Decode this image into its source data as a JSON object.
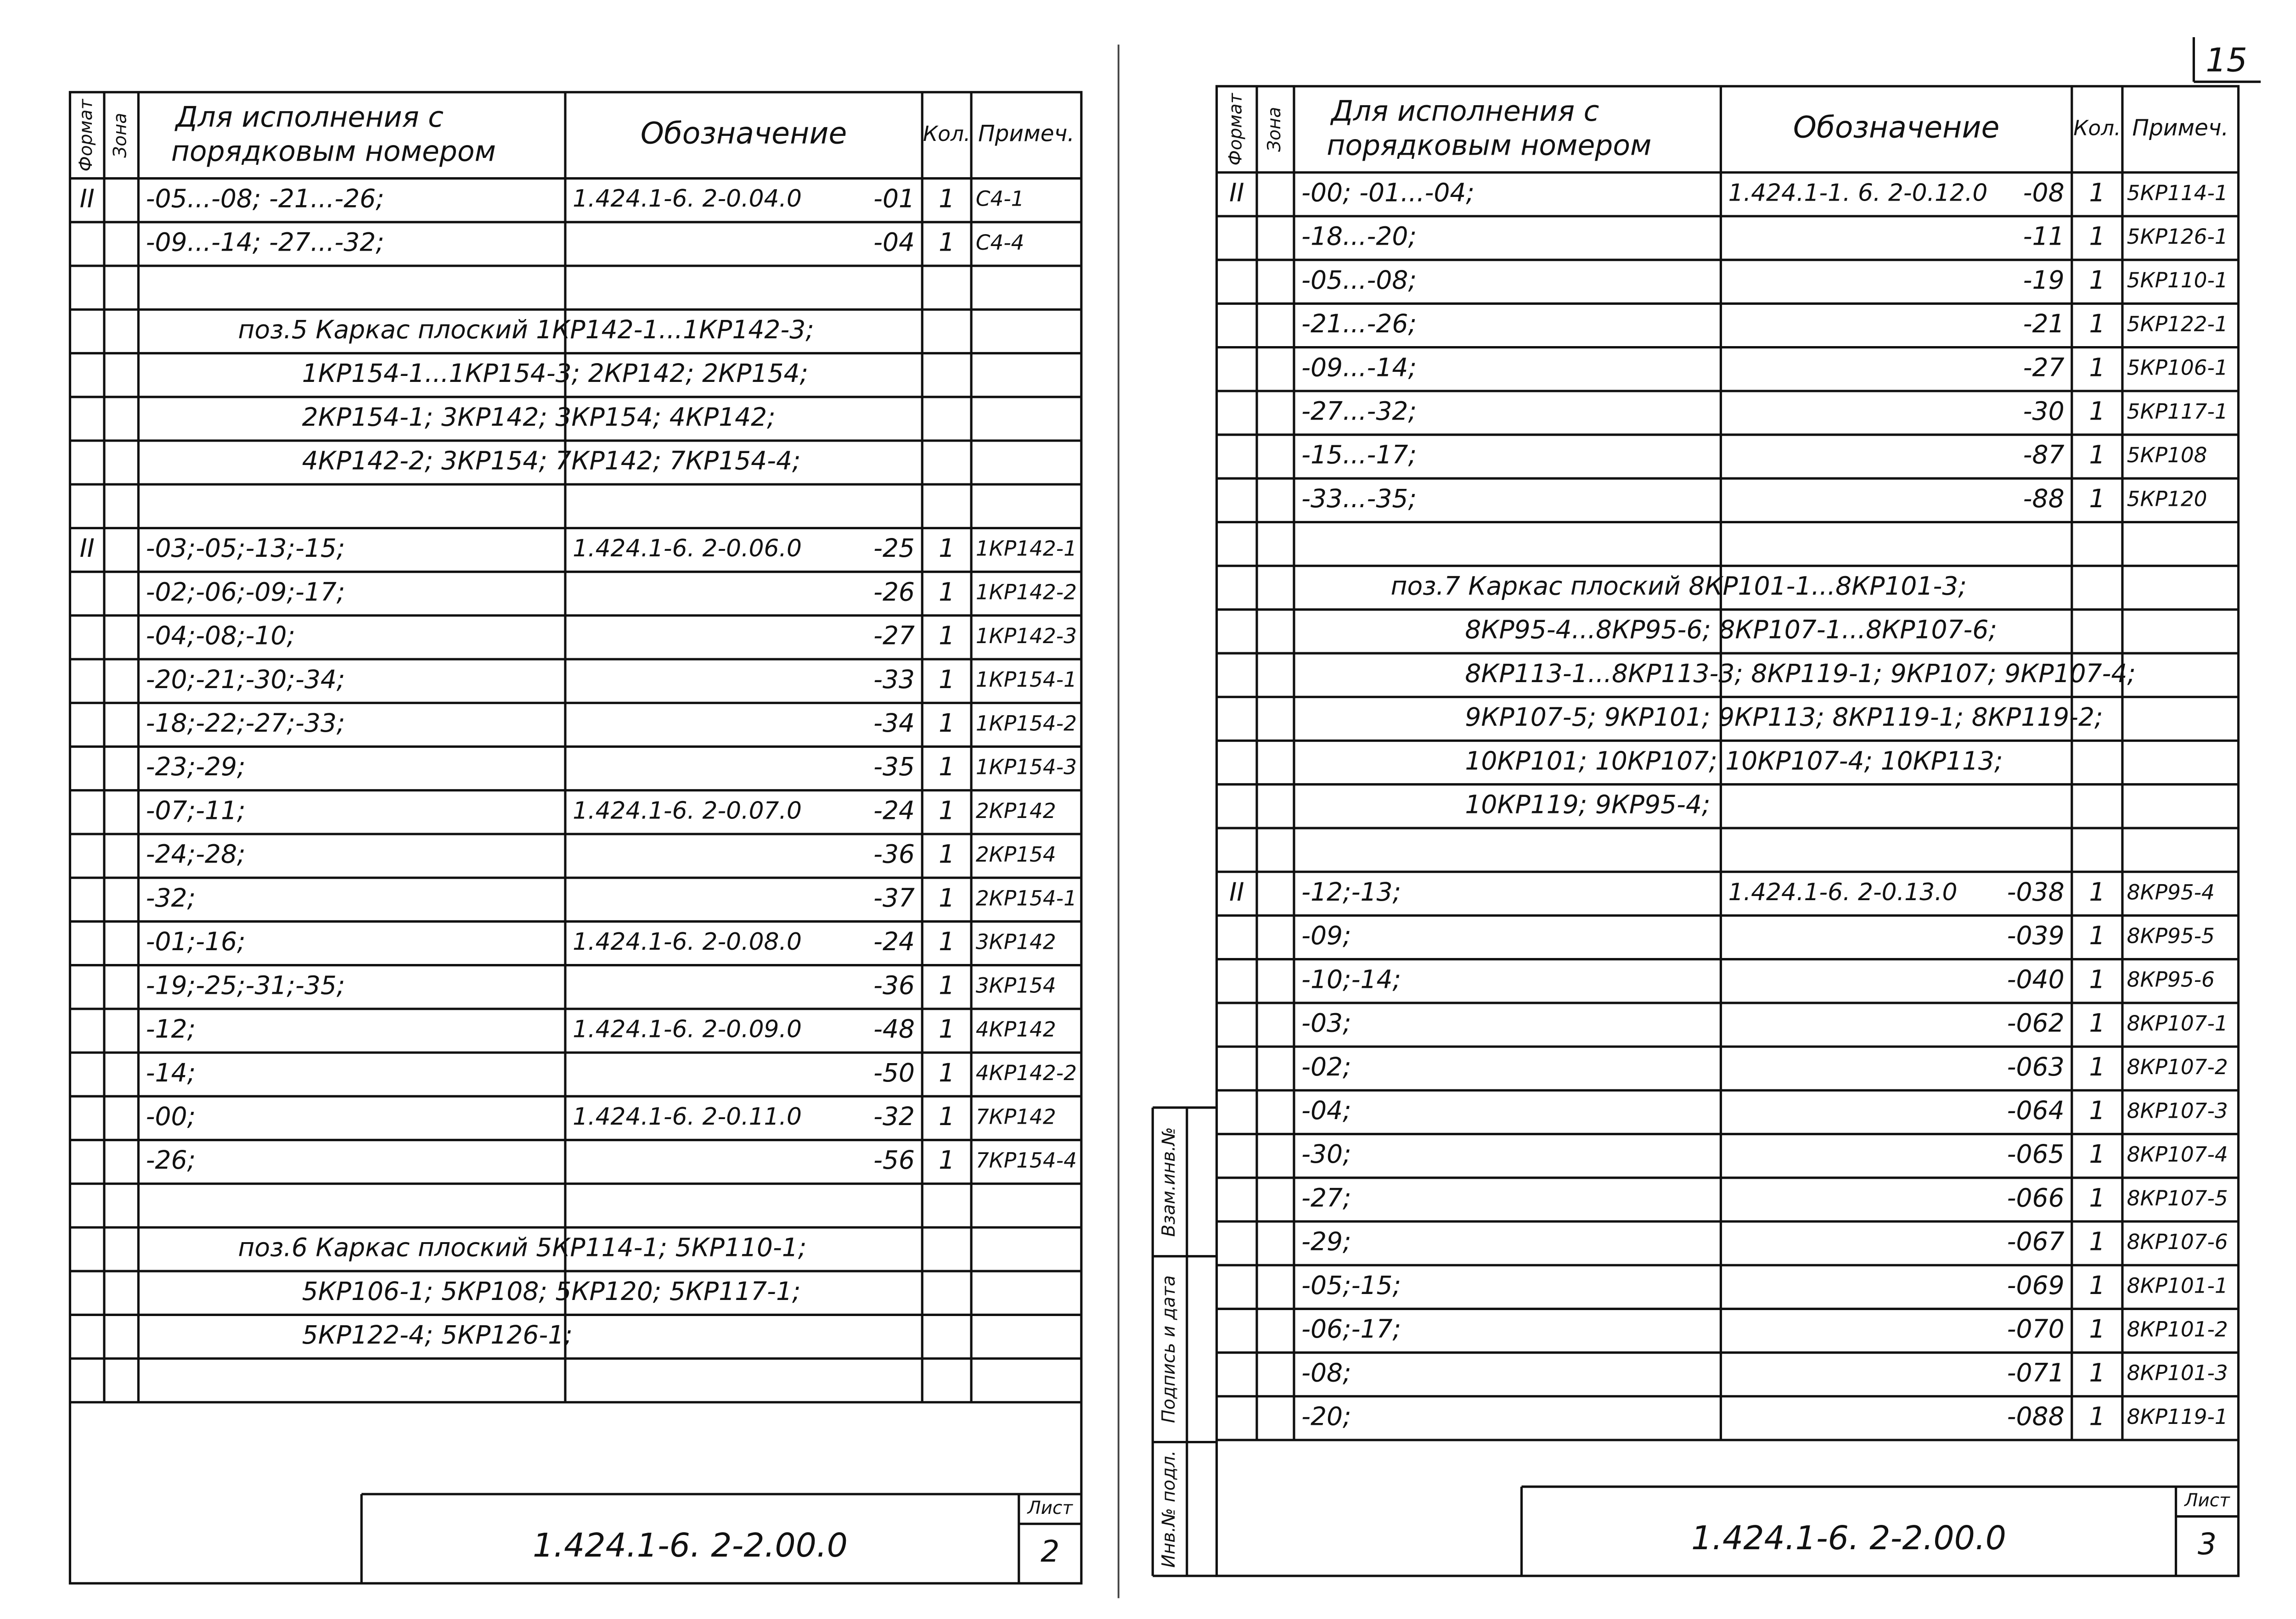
{
  "page_number": "15",
  "pages": [
    {
      "header": {
        "format": "Формат",
        "zone": "Зона",
        "exec": [
          "Для исполнения с",
          "порядковым номером"
        ],
        "designation": "Обозначение",
        "qty": "Кол.",
        "note": "Примеч."
      },
      "rows": [
        {
          "format": "II",
          "exec": "-05...-08; -21...-26;",
          "designation": "1.424.1-6. 2-0.04.0",
          "code": "-01",
          "qty": "1",
          "note": "С4-1"
        },
        {
          "exec": "-09...-14; -27...-32;",
          "code": "-04",
          "qty": "1",
          "note": "С4-4"
        },
        {},
        {
          "text": "поз.5 Каркас плоский 1КР142-1...1КР142-3;"
        },
        {
          "text": "1КР154-1...1КР154-3; 2КР142; 2КР154;"
        },
        {
          "text": "2КР154-1; 3КР142; 3КР154; 4КР142;"
        },
        {
          "text": "4КР142-2; 3КР154; 7КР142; 7КР154-4;"
        },
        {},
        {
          "format": "II",
          "exec": "-03;-05;-13;-15;",
          "designation": "1.424.1-6. 2-0.06.0",
          "code": "-25",
          "qty": "1",
          "note": "1КР142-1"
        },
        {
          "exec": "-02;-06;-09;-17;",
          "code": "-26",
          "qty": "1",
          "note": "1КР142-2"
        },
        {
          "exec": "-04;-08;-10;",
          "code": "-27",
          "qty": "1",
          "note": "1КР142-3"
        },
        {
          "exec": "-20;-21;-30;-34;",
          "code": "-33",
          "qty": "1",
          "note": "1КР154-1"
        },
        {
          "exec": "-18;-22;-27;-33;",
          "code": "-34",
          "qty": "1",
          "note": "1КР154-2"
        },
        {
          "exec": "-23;-29;",
          "code": "-35",
          "qty": "1",
          "note": "1КР154-3"
        },
        {
          "exec": "-07;-11;",
          "designation": "1.424.1-6. 2-0.07.0",
          "code": "-24",
          "qty": "1",
          "note": "2КР142"
        },
        {
          "exec": "-24;-28;",
          "code": "-36",
          "qty": "1",
          "note": "2КР154"
        },
        {
          "exec": "-32;",
          "code": "-37",
          "qty": "1",
          "note": "2КР154-1"
        },
        {
          "exec": "-01;-16;",
          "designation": "1.424.1-6. 2-0.08.0",
          "code": "-24",
          "qty": "1",
          "note": "3КР142"
        },
        {
          "exec": "-19;-25;-31;-35;",
          "code": "-36",
          "qty": "1",
          "note": "3КР154"
        },
        {
          "exec": "-12;",
          "designation": "1.424.1-6. 2-0.09.0",
          "code": "-48",
          "qty": "1",
          "note": "4КР142"
        },
        {
          "exec": "-14;",
          "code": "-50",
          "qty": "1",
          "note": "4КР142-2"
        },
        {
          "exec": "-00;",
          "designation": "1.424.1-6. 2-0.11.0",
          "code": "-32",
          "qty": "1",
          "note": "7КР142"
        },
        {
          "exec": "-26;",
          "code": "-56",
          "qty": "1",
          "note": "7КР154-4"
        },
        {},
        {
          "text": "поз.6 Каркас плоский 5КР114-1; 5КР110-1;"
        },
        {
          "text": "5КР106-1; 5КР108; 5КР120; 5КР117-1;"
        },
        {
          "text": "5КР122-4; 5КР126-1;"
        },
        {}
      ],
      "footer": {
        "code": "1.424.1-6. 2-2.00.0",
        "sheet_label": "Лист",
        "sheet": "2"
      }
    },
    {
      "header": {
        "format": "Формат",
        "zone": "Зона",
        "exec": [
          "Для исполнения с",
          "порядковым номером"
        ],
        "designation": "Обозначение",
        "qty": "Кол.",
        "note": "Примеч."
      },
      "rows": [
        {
          "format": "II",
          "exec": "-00; -01...-04;",
          "designation": "1.424.1-1. 6. 2-0.12.0",
          "code": "-08",
          "qty": "1",
          "note": "5КР114-1"
        },
        {
          "exec": "-18...-20;",
          "code": "-11",
          "qty": "1",
          "note": "5КР126-1"
        },
        {
          "exec": "-05...-08;",
          "code": "-19",
          "qty": "1",
          "note": "5КР110-1"
        },
        {
          "exec": "-21...-26;",
          "code": "-21",
          "qty": "1",
          "note": "5КР122-1"
        },
        {
          "exec": "-09...-14;",
          "code": "-27",
          "qty": "1",
          "note": "5КР106-1"
        },
        {
          "exec": "-27...-32;",
          "code": "-30",
          "qty": "1",
          "note": "5КР117-1"
        },
        {
          "exec": "-15...-17;",
          "code": "-87",
          "qty": "1",
          "note": "5КР108"
        },
        {
          "exec": "-33...-35;",
          "code": "-88",
          "qty": "1",
          "note": "5КР120"
        },
        {},
        {
          "text": "поз.7 Каркас плоский 8КР101-1...8КР101-3;"
        },
        {
          "text": "8КР95-4...8КР95-6; 8КР107-1...8КР107-6;"
        },
        {
          "text": "8КР113-1...8КР113-3; 8КР119-1; 9КР107; 9КР107-4;"
        },
        {
          "text": "9КР107-5; 9КР101; 9КР113; 8КР119-1; 8КР119-2;"
        },
        {
          "text": "10КР101; 10КР107; 10КР107-4; 10КР113;"
        },
        {
          "text": "10КР119; 9КР95-4;"
        },
        {},
        {
          "format": "II",
          "exec": "-12;-13;",
          "designation": "1.424.1-6. 2-0.13.0",
          "code": "-038",
          "qty": "1",
          "note": "8КР95-4"
        },
        {
          "exec": "-09;",
          "code": "-039",
          "qty": "1",
          "note": "8КР95-5"
        },
        {
          "exec": "-10;-14;",
          "code": "-040",
          "qty": "1",
          "note": "8КР95-6"
        },
        {
          "exec": "-03;",
          "code": "-062",
          "qty": "1",
          "note": "8КР107-1"
        },
        {
          "exec": "-02;",
          "code": "-063",
          "qty": "1",
          "note": "8КР107-2"
        },
        {
          "exec": "-04;",
          "code": "-064",
          "qty": "1",
          "note": "8КР107-3"
        },
        {
          "exec": "-30;",
          "code": "-065",
          "qty": "1",
          "note": "8КР107-4"
        },
        {
          "exec": "-27;",
          "code": "-066",
          "qty": "1",
          "note": "8КР107-5"
        },
        {
          "exec": "-29;",
          "code": "-067",
          "qty": "1",
          "note": "8КР107-6"
        },
        {
          "exec": "-05;-15;",
          "code": "-069",
          "qty": "1",
          "note": "8КР101-1"
        },
        {
          "exec": "-06;-17;",
          "code": "-070",
          "qty": "1",
          "note": "8КР101-2"
        },
        {
          "exec": "-08;",
          "code": "-071",
          "qty": "1",
          "note": "8КР101-3"
        },
        {
          "exec": "-20;",
          "code": "-088",
          "qty": "1",
          "note": "8КР119-1"
        }
      ],
      "footer": {
        "code": "1.424.1-6. 2-2.00.0",
        "sheet_label": "Лист",
        "sheet": "3"
      },
      "stamp": [
        "Инв.№ подл.",
        "Подпись и дата",
        "Взам.инв.№"
      ]
    }
  ]
}
